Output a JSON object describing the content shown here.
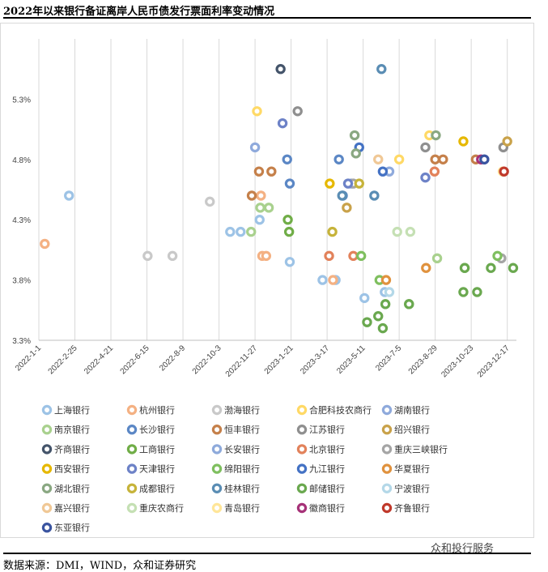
{
  "title": "2022年以来银行备证离岸人民币债发行票面利率变动情况",
  "source": "数据来源：DMI，WIND，众和证券研究",
  "watermark": "众和投行服务",
  "chart_data": {
    "type": "scatter",
    "y_ticks": [
      "3.3%",
      "3.8%",
      "4.3%",
      "4.8%",
      "5.3%"
    ],
    "y_values": [
      3.3,
      3.8,
      4.3,
      4.8,
      5.3
    ],
    "x_ticks": [
      "2022-1-1",
      "2022-2-25",
      "2022-4-21",
      "2022-6-15",
      "2022-8-9",
      "2022-10-3",
      "2022-11-27",
      "2023-1-21",
      "2023-3-17",
      "2023-5-11",
      "2023-7-5",
      "2023-8-29",
      "2023-10-23",
      "2023-12-17"
    ],
    "x_range": [
      "2022-1-1",
      "2023-12-31"
    ],
    "ylim": [
      3.3,
      5.8
    ],
    "grid": "vertical",
    "legend_position": "bottom",
    "series": [
      {
        "name": "上海银行",
        "color": "#9dc3e6",
        "points": [
          [
            "2022-2-16",
            4.5
          ],
          [
            "2022-10-20",
            4.2
          ],
          [
            "2022-11-5",
            4.2
          ],
          [
            "2022-12-4",
            4.3
          ],
          [
            "2023-1-19",
            3.95
          ],
          [
            "2023-3-10",
            3.8
          ],
          [
            "2023-3-30",
            3.8
          ],
          [
            "2023-5-13",
            3.65
          ],
          [
            "2023-6-13",
            3.7
          ]
        ]
      },
      {
        "name": "杭州银行",
        "color": "#f4b183",
        "points": [
          [
            "2022-1-10",
            4.1
          ],
          [
            "2022-12-6",
            4.5
          ],
          [
            "2022-12-8",
            4.0
          ],
          [
            "2022-12-14",
            4.0
          ],
          [
            "2023-3-26",
            3.8
          ]
        ]
      },
      {
        "name": "渤海银行",
        "color": "#c9c9c9",
        "points": [
          [
            "2022-7-24",
            4.0
          ],
          [
            "2022-9-19",
            4.45
          ],
          [
            "2022-6-16",
            4.0
          ]
        ]
      },
      {
        "name": "合肥科技农商行",
        "color": "#ffd966",
        "points": [
          [
            "2022-11-30",
            5.2
          ],
          [
            "2023-8-20",
            5.0
          ],
          [
            "2023-7-5",
            4.8
          ]
        ]
      },
      {
        "name": "湖南银行",
        "color": "#8faadc",
        "points": [
          [
            "2022-11-27",
            4.9
          ],
          [
            "2023-6-20",
            4.7
          ],
          [
            "2023-11-12",
            4.8
          ]
        ]
      },
      {
        "name": "南京银行",
        "color": "#a9d18e",
        "points": [
          [
            "2022-11-21",
            4.2
          ],
          [
            "2022-12-5",
            4.4
          ],
          [
            "2022-12-18",
            4.4
          ],
          [
            "2023-9-1",
            3.98
          ]
        ]
      },
      {
        "name": "长沙银行",
        "color": "#5b87c5",
        "points": [
          [
            "2023-1-15",
            4.8
          ],
          [
            "2023-1-19",
            4.6
          ],
          [
            "2023-4-4",
            4.8
          ],
          [
            "2023-4-10",
            4.5
          ]
        ]
      },
      {
        "name": "恒丰银行",
        "color": "#c5804a",
        "points": [
          [
            "2022-11-22",
            4.5
          ],
          [
            "2022-12-3",
            4.7
          ],
          [
            "2022-12-22",
            4.7
          ],
          [
            "2023-8-29",
            4.8
          ],
          [
            "2023-9-10",
            4.8
          ],
          [
            "2023-10-30",
            4.8
          ]
        ]
      },
      {
        "name": "江苏银行",
        "color": "#8f8f8f",
        "points": [
          [
            "2023-1-31",
            5.2
          ],
          [
            "2023-8-14",
            4.9
          ],
          [
            "2023-12-11",
            4.9
          ]
        ]
      },
      {
        "name": "绍兴银行",
        "color": "#c9a24a",
        "points": [
          [
            "2023-4-16",
            4.4
          ],
          [
            "2023-12-17",
            4.95
          ]
        ]
      },
      {
        "name": "齐商银行",
        "color": "#44546a",
        "points": [
          [
            "2023-1-5",
            5.55
          ]
        ]
      },
      {
        "name": "工商银行",
        "color": "#70ad47",
        "points": [
          [
            "2023-1-16",
            4.3
          ],
          [
            "2023-1-18",
            4.2
          ]
        ]
      },
      {
        "name": "长安银行",
        "color": "#8eaadb",
        "points": [
          [
            "2023-4-23",
            4.6
          ]
        ]
      },
      {
        "name": "北京银行",
        "color": "#e2825b",
        "points": [
          [
            "2023-3-20",
            4.0
          ],
          [
            "2023-4-26",
            4.0
          ],
          [
            "2023-8-28",
            4.7
          ]
        ]
      },
      {
        "name": "重庆三峡银行",
        "color": "#a5a5a5",
        "points": [
          [
            "2023-4-26",
            4.6
          ],
          [
            "2023-12-8",
            3.98
          ]
        ]
      },
      {
        "name": "西安银行",
        "color": "#e6b800",
        "points": [
          [
            "2023-3-21",
            4.6
          ],
          [
            "2023-10-11",
            4.95
          ]
        ]
      },
      {
        "name": "天津银行",
        "color": "#6d82c7",
        "points": [
          [
            "2023-1-8",
            5.1
          ],
          [
            "2023-4-18",
            4.6
          ],
          [
            "2023-8-14",
            4.65
          ]
        ]
      },
      {
        "name": "绵阳银行",
        "color": "#7fbf5f",
        "points": [
          [
            "2023-5-8",
            4.0
          ],
          [
            "2023-6-5",
            3.8
          ],
          [
            "2023-7-20",
            3.6
          ],
          [
            "2023-10-13",
            3.9
          ],
          [
            "2023-12-2",
            4.0
          ]
        ]
      },
      {
        "name": "九江银行",
        "color": "#4472c4",
        "points": [
          [
            "2023-5-5",
            4.9
          ],
          [
            "2023-6-10",
            4.7
          ]
        ]
      },
      {
        "name": "华夏银行",
        "color": "#e0923e",
        "points": [
          [
            "2023-6-15",
            3.8
          ],
          [
            "2023-8-15",
            3.9
          ]
        ]
      },
      {
        "name": "湖北银行",
        "color": "#8aa882",
        "points": [
          [
            "2023-4-28",
            5.0
          ],
          [
            "2023-4-30",
            4.85
          ],
          [
            "2023-8-30",
            5.0
          ]
        ]
      },
      {
        "name": "成都银行",
        "color": "#c6b33a",
        "points": [
          [
            "2023-3-25",
            4.2
          ],
          [
            "2023-5-5",
            4.6
          ]
        ]
      },
      {
        "name": "桂林银行",
        "color": "#5a8db4",
        "points": [
          [
            "2023-4-9",
            4.5
          ],
          [
            "2023-5-28",
            4.5
          ],
          [
            "2023-6-8",
            5.55
          ]
        ]
      },
      {
        "name": "邮储银行",
        "color": "#6aa84f",
        "points": [
          [
            "2023-5-17",
            3.45
          ],
          [
            "2023-6-3",
            3.5
          ],
          [
            "2023-6-10",
            3.4
          ],
          [
            "2023-6-14",
            3.6
          ],
          [
            "2023-7-20",
            3.6
          ],
          [
            "2023-10-11",
            3.7
          ],
          [
            "2023-11-1",
            3.7
          ],
          [
            "2023-10-13",
            3.9
          ],
          [
            "2023-11-22",
            3.9
          ],
          [
            "2023-12-26",
            3.9
          ]
        ]
      },
      {
        "name": "宁波银行",
        "color": "#b4d8e8",
        "points": [
          [
            "2023-6-20",
            3.7
          ]
        ]
      },
      {
        "name": "嘉兴银行",
        "color": "#f0c896",
        "points": [
          [
            "2023-6-3",
            4.8
          ]
        ]
      },
      {
        "name": "重庆农商行",
        "color": "#c5e0b4",
        "points": [
          [
            "2023-7-2",
            4.2
          ],
          [
            "2023-7-22",
            4.2
          ]
        ]
      },
      {
        "name": "青岛银行",
        "color": "#ffe699",
        "points": [
          [
            "2023-12-10",
            4.7
          ]
        ]
      },
      {
        "name": "徽商银行",
        "color": "#a63278",
        "points": [
          [
            "2023-11-7",
            4.8
          ]
        ]
      },
      {
        "name": "齐鲁银行",
        "color": "#c0392b",
        "points": [
          [
            "2023-12-12",
            4.7
          ]
        ]
      },
      {
        "name": "东亚银行",
        "color": "#3a54a0",
        "points": [
          [
            "2023-11-12",
            4.8
          ]
        ]
      }
    ]
  }
}
